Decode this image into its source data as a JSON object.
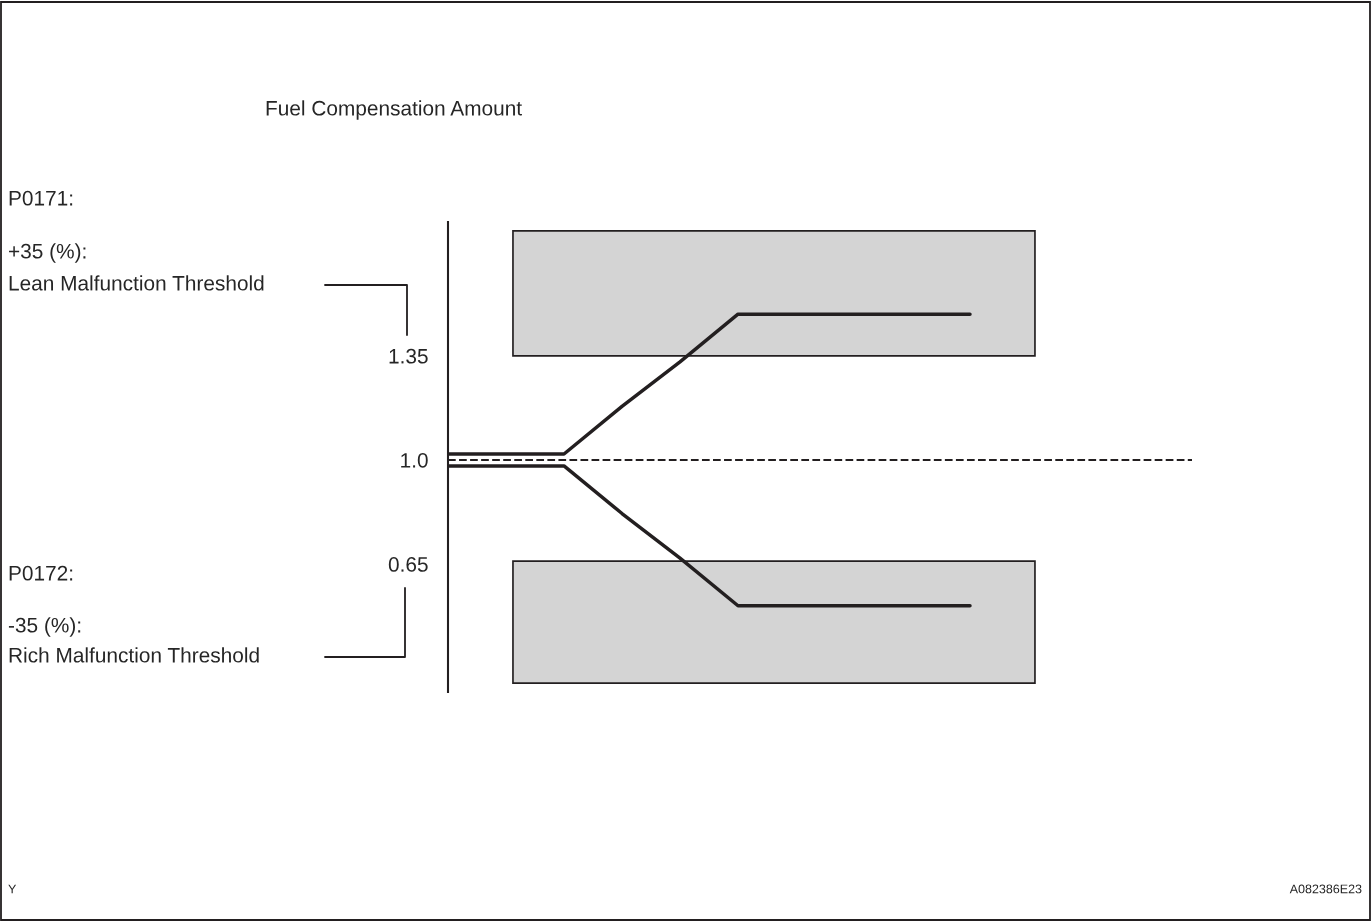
{
  "chart_data": {
    "type": "line",
    "title": "Fuel Compensation Amount",
    "categories": [
      null,
      null,
      null,
      null,
      null,
      null,
      null,
      null,
      null,
      null
    ],
    "ylim": [
      0.22,
      1.8
    ],
    "yticks": [
      {
        "value": 1.35,
        "label": "1.35"
      },
      {
        "value": 1.0,
        "label": "1.0"
      },
      {
        "value": 0.65,
        "label": "0.65"
      }
    ],
    "tick_labels": "y",
    "grid": false,
    "legend": false,
    "line_style": "solid",
    "marker": "none",
    "series": [
      {
        "color": "#231f20",
        "values": [
          1.02,
          1.02,
          1.02,
          1.18,
          1.33,
          1.49,
          1.49,
          1.49,
          1.49,
          1.49
        ]
      },
      {
        "color": "#231f20",
        "values": [
          0.98,
          0.98,
          0.98,
          0.82,
          0.67,
          0.51,
          0.51,
          0.51,
          0.51,
          0.51
        ]
      }
    ],
    "ref_lines": [
      {
        "axis": "y",
        "value": 1.0,
        "line_style": "dashed",
        "color": "#231f20"
      }
    ],
    "bands": [
      {
        "axis": "y",
        "from": 1.35,
        "to": 1.77,
        "color": "#d4d4d4"
      },
      {
        "axis": "y",
        "from": 0.25,
        "to": 0.66,
        "color": "#d4d4d4"
      }
    ],
    "annotations": [
      "P0171:",
      "+35 (%):",
      "Lean Malfunction Threshold",
      "P0172:",
      "-35 (%):",
      "Rich Malfunction Threshold",
      "Y",
      "A082386E23"
    ]
  }
}
